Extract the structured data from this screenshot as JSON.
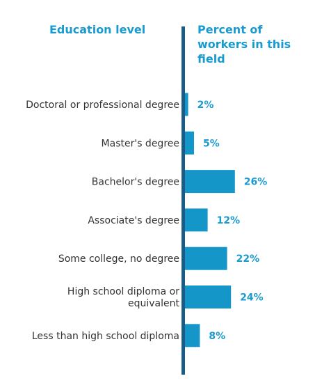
{
  "headers": {
    "left": "Education level",
    "right": "Percent of workers in this field"
  },
  "colors": {
    "bar": "#1496c8",
    "axis": "#1b5c86",
    "header": "#1a9bd0",
    "label": "#333333"
  },
  "chart_data": {
    "type": "bar",
    "orientation": "horizontal",
    "categories": [
      "Doctoral or professional degree",
      "Master's degree",
      "Bachelor's degree",
      "Associate's degree",
      "Some college, no degree",
      "High school diploma or equivalent",
      "Less than high school diploma"
    ],
    "category_lines": [
      [
        "Doctoral or professional degree"
      ],
      [
        "Master's degree"
      ],
      [
        "Bachelor's degree"
      ],
      [
        "Associate's degree"
      ],
      [
        "Some college, no degree"
      ],
      [
        "High school diploma or",
        "equivalent"
      ],
      [
        "Less than high school diploma"
      ]
    ],
    "values": [
      2,
      5,
      26,
      12,
      22,
      24,
      8
    ],
    "value_labels": [
      "2%",
      "5%",
      "26%",
      "12%",
      "22%",
      "24%",
      "8%"
    ],
    "unit": "%",
    "xlim": [
      0,
      30
    ]
  }
}
